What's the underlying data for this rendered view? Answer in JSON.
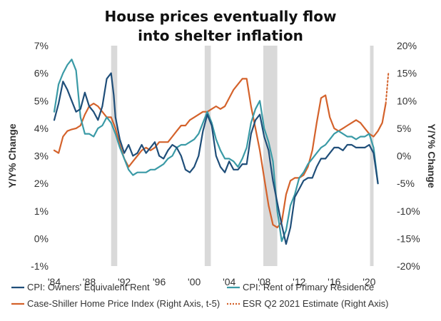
{
  "chart_data": {
    "type": "line",
    "title_line1": "House prices eventually flow",
    "title_line2": "into shelter inflation",
    "y_left_label": "Y/Y% Change",
    "y_right_label": "Y/Y% Change",
    "y_left_lim": [
      -1,
      7
    ],
    "y_right_lim": [
      -20,
      20
    ],
    "y_left_ticks": [
      "7%",
      "6%",
      "5%",
      "4%",
      "3%",
      "2%",
      "1%",
      "0%",
      "-1%"
    ],
    "y_right_ticks": [
      "20%",
      "15%",
      "10%",
      "5%",
      "0%",
      "-5%",
      "-10%",
      "-15%",
      "-20%"
    ],
    "x_lim": [
      1984,
      2022.5
    ],
    "x_ticks": [
      "'84",
      "'88",
      "'92",
      "'96",
      "'00",
      "'04",
      "'08",
      "'12",
      "'16",
      "'20"
    ],
    "recessions": [
      [
        1990.5,
        1991.2
      ],
      [
        2001.2,
        2001.9
      ],
      [
        2007.9,
        2009.5
      ],
      [
        2020.1,
        2020.5
      ]
    ],
    "grid": false,
    "legend_position": "bottom",
    "colors": {
      "oer": "#1f4e79",
      "rent": "#3a9aa6",
      "hpi": "#d4622b",
      "recession": "#d9d9d9"
    },
    "series": [
      {
        "name": "CPI: Owners' Equivalent Rent",
        "axis": "left",
        "x": [
          1984.0,
          1984.5,
          1985.0,
          1985.5,
          1986.0,
          1986.5,
          1987.0,
          1987.5,
          1988.0,
          1988.5,
          1989.0,
          1989.5,
          1990.0,
          1990.5,
          1990.8,
          1991.0,
          1991.5,
          1992.0,
          1992.5,
          1993.0,
          1993.5,
          1994.0,
          1994.5,
          1995.0,
          1995.5,
          1996.0,
          1996.5,
          1997.0,
          1997.5,
          1998.0,
          1998.5,
          1999.0,
          1999.5,
          2000.0,
          2000.5,
          2001.0,
          2001.5,
          2002.0,
          2002.5,
          2003.0,
          2003.5,
          2004.0,
          2004.5,
          2005.0,
          2005.5,
          2006.0,
          2006.5,
          2007.0,
          2007.5,
          2008.0,
          2008.5,
          2009.0,
          2009.5,
          2010.0,
          2010.5,
          2011.0,
          2011.5,
          2012.0,
          2012.5,
          2013.0,
          2013.5,
          2014.0,
          2014.5,
          2015.0,
          2015.5,
          2016.0,
          2016.5,
          2017.0,
          2017.5,
          2018.0,
          2018.5,
          2019.0,
          2019.5,
          2020.0,
          2020.5,
          2021.0
        ],
        "values": [
          4.3,
          4.9,
          5.7,
          5.4,
          5.0,
          4.6,
          4.7,
          5.3,
          4.8,
          4.6,
          4.3,
          4.8,
          5.8,
          6.0,
          5.2,
          4.4,
          3.6,
          3.1,
          3.4,
          3.0,
          3.1,
          3.4,
          3.1,
          3.3,
          3.5,
          3.0,
          2.9,
          3.2,
          3.4,
          3.3,
          3.0,
          2.5,
          2.4,
          2.6,
          3.0,
          3.9,
          4.5,
          4.1,
          3.0,
          2.6,
          2.4,
          2.8,
          2.5,
          2.5,
          2.7,
          2.7,
          3.8,
          4.3,
          4.5,
          3.7,
          3.2,
          2.1,
          1.3,
          0.5,
          -0.2,
          0.4,
          1.5,
          1.8,
          2.1,
          2.2,
          2.2,
          2.6,
          2.9,
          2.9,
          3.1,
          3.3,
          3.3,
          3.2,
          3.4,
          3.4,
          3.3,
          3.3,
          3.3,
          3.4,
          3.1,
          2.0
        ]
      },
      {
        "name": "CPI: Rent of Primary Residence",
        "axis": "left",
        "x": [
          1984.0,
          1984.5,
          1985.0,
          1985.5,
          1986.0,
          1986.5,
          1987.0,
          1987.5,
          1988.0,
          1988.5,
          1989.0,
          1989.5,
          1990.0,
          1990.5,
          1991.0,
          1991.5,
          1992.0,
          1992.5,
          1993.0,
          1993.5,
          1994.0,
          1994.5,
          1995.0,
          1995.5,
          1996.0,
          1996.5,
          1997.0,
          1997.5,
          1998.0,
          1998.5,
          1999.0,
          1999.5,
          2000.0,
          2000.5,
          2001.0,
          2001.5,
          2002.0,
          2002.5,
          2003.0,
          2003.5,
          2004.0,
          2004.5,
          2005.0,
          2005.5,
          2006.0,
          2006.5,
          2007.0,
          2007.5,
          2008.0,
          2008.5,
          2009.0,
          2009.5,
          2010.0,
          2010.5,
          2011.0,
          2011.5,
          2012.0,
          2012.5,
          2013.0,
          2013.5,
          2014.0,
          2014.5,
          2015.0,
          2015.5,
          2016.0,
          2016.5,
          2017.0,
          2017.5,
          2018.0,
          2018.5,
          2019.0,
          2019.5,
          2020.0,
          2020.5,
          2021.0
        ],
        "values": [
          4.6,
          5.6,
          6.0,
          6.3,
          6.5,
          6.1,
          4.4,
          3.8,
          3.8,
          3.7,
          4.0,
          4.1,
          4.4,
          4.2,
          3.8,
          3.3,
          2.9,
          2.5,
          2.3,
          2.4,
          2.4,
          2.4,
          2.5,
          2.5,
          2.6,
          2.7,
          2.9,
          3.0,
          3.3,
          3.4,
          3.4,
          3.5,
          3.6,
          3.8,
          4.2,
          4.6,
          4.2,
          3.6,
          3.2,
          2.9,
          2.9,
          2.8,
          2.6,
          2.9,
          3.3,
          4.2,
          4.7,
          5.0,
          4.0,
          3.5,
          2.8,
          1.0,
          -0.1,
          0.3,
          1.2,
          1.6,
          2.2,
          2.4,
          2.7,
          2.9,
          3.1,
          3.3,
          3.4,
          3.6,
          3.8,
          3.9,
          3.8,
          3.7,
          3.7,
          3.6,
          3.7,
          3.7,
          3.8,
          3.3,
          2.0
        ]
      },
      {
        "name": "Case-Shiller Home Price Index (Right Axis, t-5)",
        "axis": "right",
        "x": [
          1984.0,
          1984.5,
          1985.0,
          1985.5,
          1986.0,
          1986.5,
          1987.0,
          1987.5,
          1988.0,
          1988.5,
          1989.0,
          1989.5,
          1990.0,
          1990.5,
          1991.0,
          1991.5,
          1992.0,
          1992.5,
          1993.0,
          1993.5,
          1994.0,
          1994.5,
          1995.0,
          1995.5,
          1996.0,
          1996.5,
          1997.0,
          1997.5,
          1998.0,
          1998.5,
          1999.0,
          1999.5,
          2000.0,
          2000.5,
          2001.0,
          2001.5,
          2002.0,
          2002.5,
          2003.0,
          2003.5,
          2004.0,
          2004.5,
          2005.0,
          2005.5,
          2006.0,
          2006.5,
          2007.0,
          2007.5,
          2008.0,
          2008.5,
          2009.0,
          2009.5,
          2010.0,
          2010.5,
          2011.0,
          2011.5,
          2012.0,
          2012.5,
          2013.0,
          2013.5,
          2014.0,
          2014.5,
          2015.0,
          2015.5,
          2016.0,
          2016.5,
          2017.0,
          2017.5,
          2018.0,
          2018.5,
          2019.0,
          2019.5,
          2020.0,
          2020.5,
          2021.0,
          2021.5,
          2021.9
        ],
        "values": [
          1.0,
          0.5,
          3.5,
          4.5,
          4.8,
          5.0,
          5.5,
          7.5,
          9.0,
          9.5,
          9.0,
          8.0,
          7.0,
          7.0,
          5.0,
          2.0,
          -0.5,
          -2.0,
          -1.0,
          0.0,
          1.0,
          1.5,
          1.0,
          1.5,
          2.5,
          2.5,
          2.5,
          3.5,
          4.5,
          5.5,
          5.5,
          6.5,
          7.0,
          7.5,
          8.0,
          8.0,
          8.5,
          9.0,
          8.5,
          9.0,
          10.5,
          12.0,
          13.0,
          14.0,
          14.0,
          9.0,
          5.0,
          1.0,
          -4.0,
          -9.0,
          -12.5,
          -13.0,
          -12.0,
          -7.0,
          -4.5,
          -4.0,
          -4.0,
          -3.5,
          -2.0,
          1.0,
          6.0,
          10.5,
          11.0,
          7.0,
          5.0,
          4.5,
          5.0,
          5.5,
          6.0,
          6.5,
          6.0,
          5.0,
          4.0,
          3.5,
          4.5,
          6.0,
          9.5
        ]
      },
      {
        "name": "ESR Q2 2021 Estimate (Right Axis)",
        "axis": "right",
        "x": [
          2021.9,
          2022.2
        ],
        "values": [
          9.5,
          15.0
        ]
      }
    ],
    "legend_rows": [
      [
        "CPI: Owners' Equivalent Rent",
        "CPI: Rent of Primary Residence"
      ],
      [
        "Case-Shiller Home Price Index (Right Axis, t-5)",
        "ESR Q2 2021 Estimate (Right Axis)"
      ]
    ]
  }
}
